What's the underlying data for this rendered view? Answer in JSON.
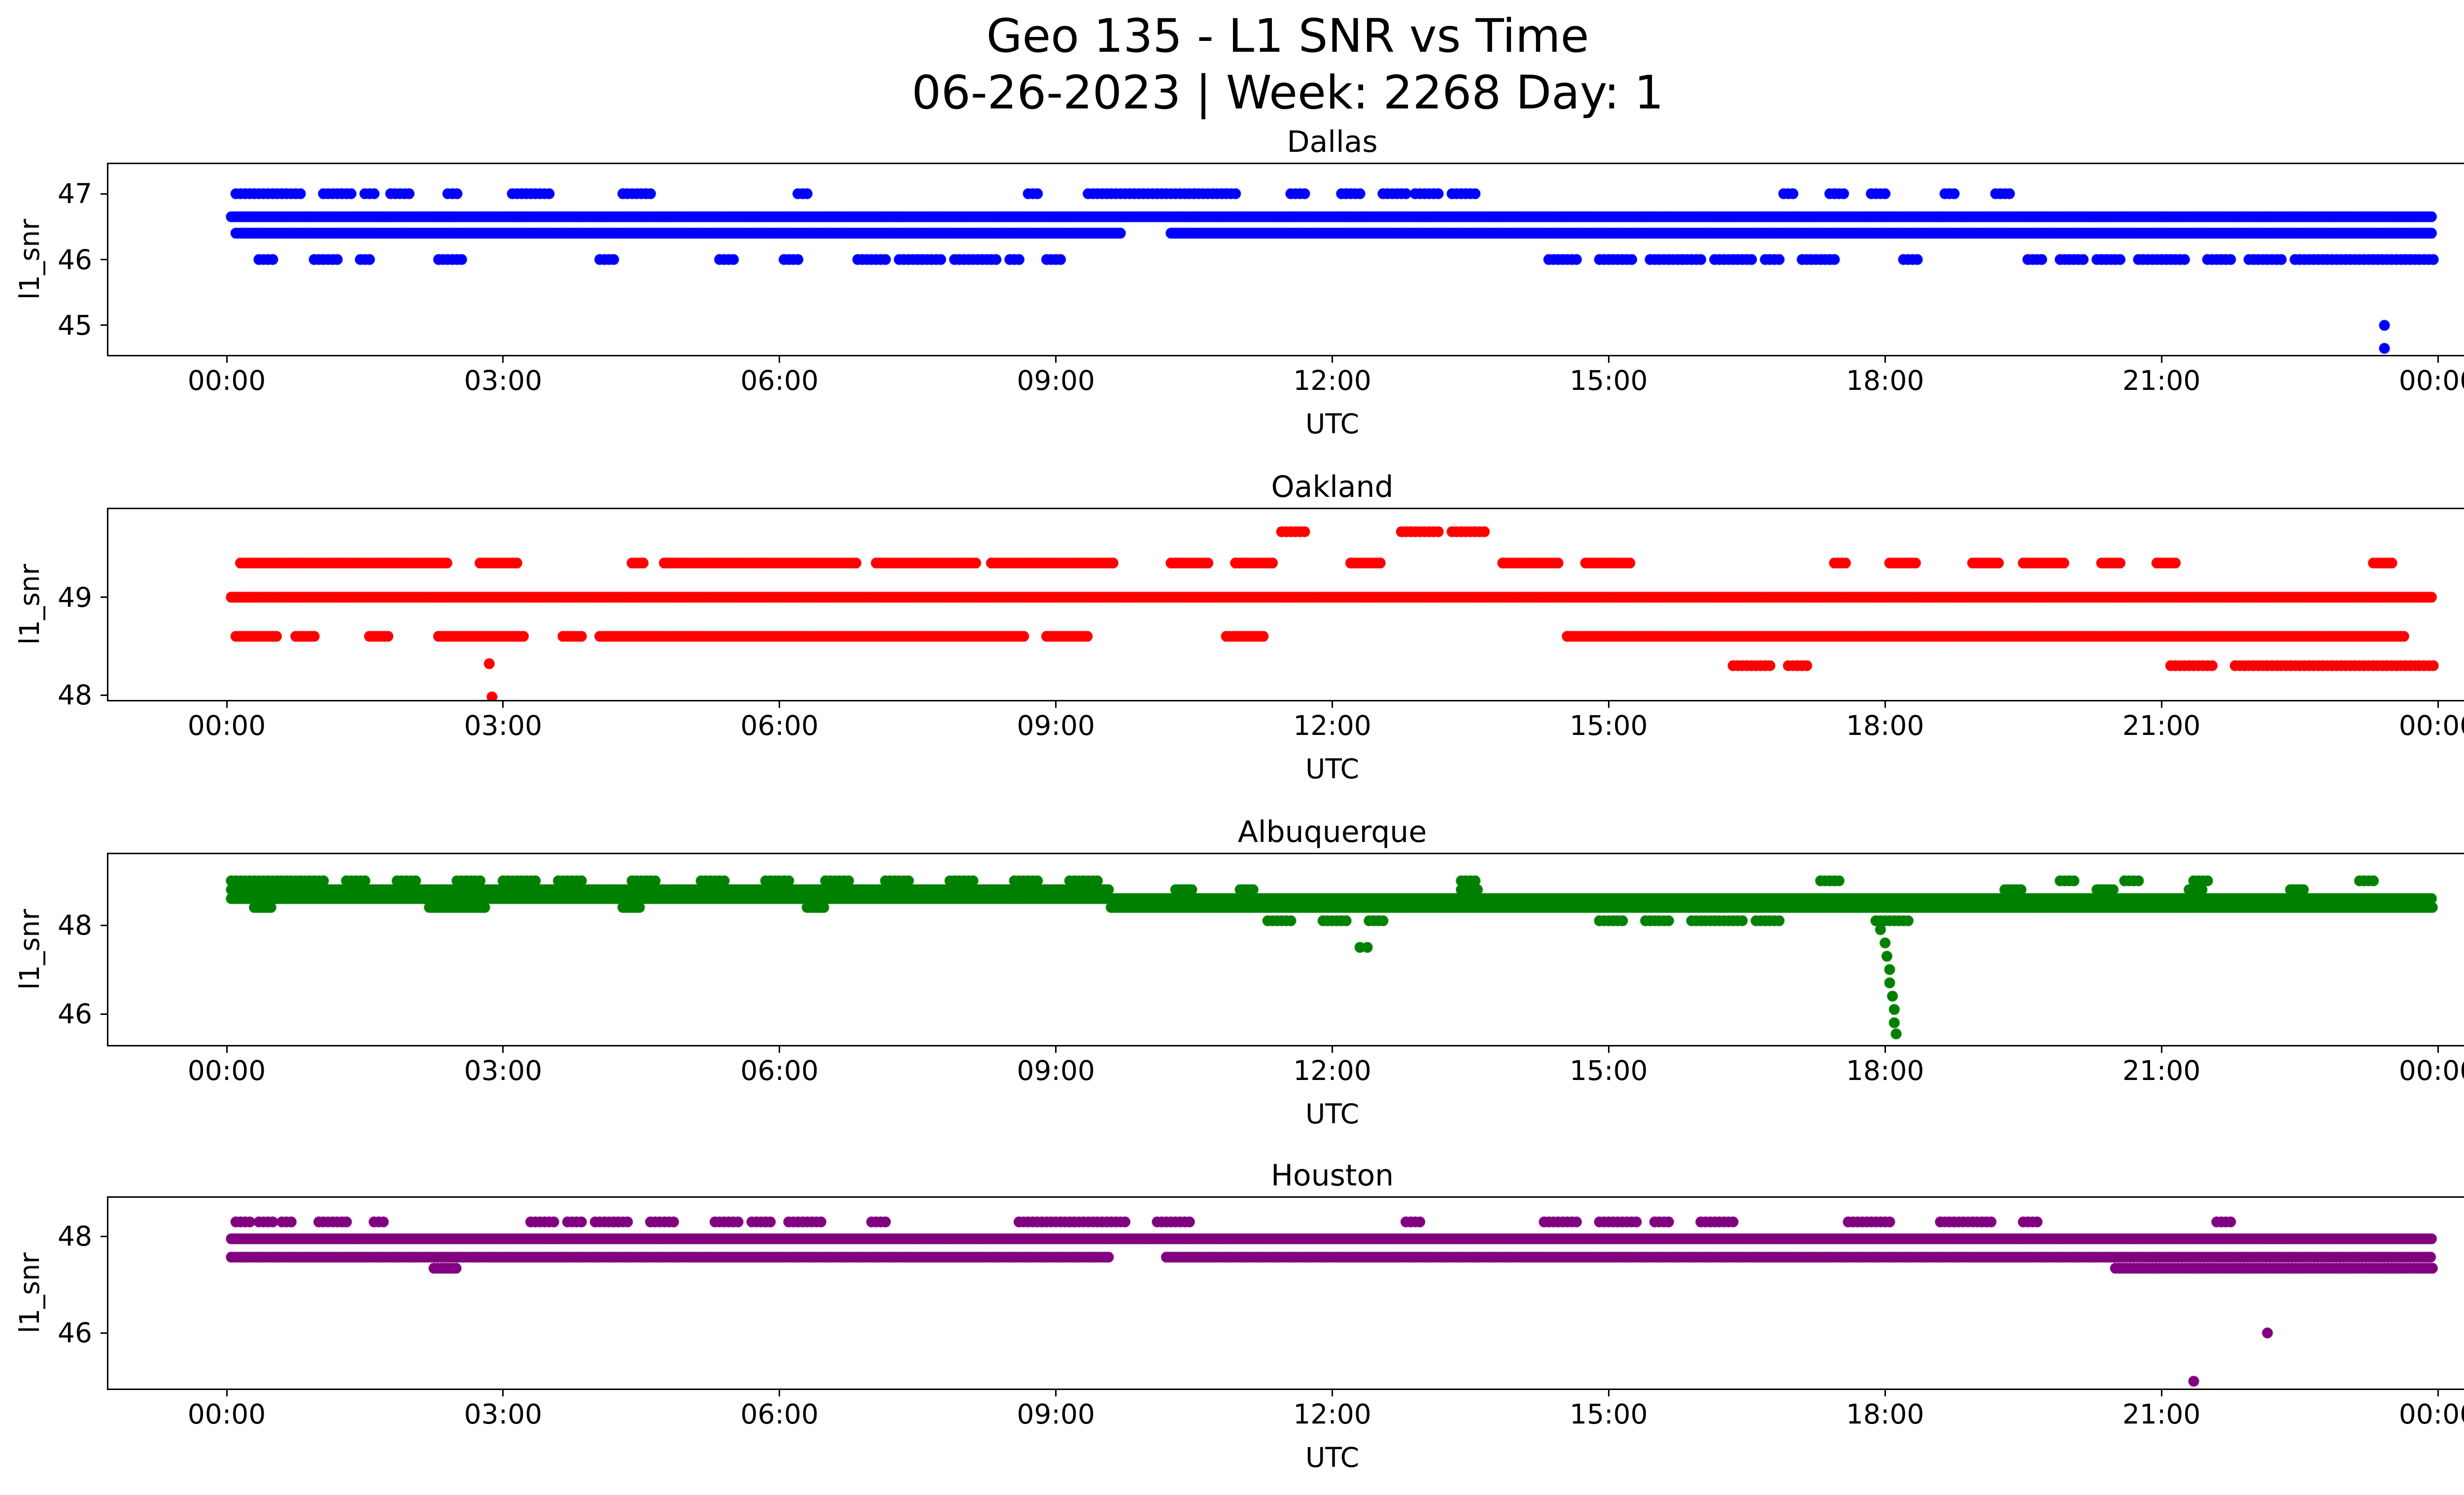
{
  "figure": {
    "title_line1": "Geo 135 - L1 SNR vs Time",
    "title_line2": "06-26-2023 | Week: 2268 Day: 1"
  },
  "axis": {
    "xlabel": "UTC",
    "x_tick_labels": [
      "00:00",
      "03:00",
      "06:00",
      "09:00",
      "12:00",
      "15:00",
      "18:00",
      "21:00",
      "00:00"
    ],
    "x_tick_hours": [
      0,
      3,
      6,
      9,
      12,
      15,
      18,
      21,
      24
    ],
    "x_range_hours": [
      0,
      24
    ],
    "grid": false,
    "legend": "none"
  },
  "chart_data": [
    {
      "type": "scatter",
      "title": "Dallas",
      "color": "#0000ff",
      "ylabel": "l1_snr",
      "xlabel": "UTC",
      "ylim": [
        44.55,
        47.45
      ],
      "yticks": [
        45,
        46,
        47
      ],
      "bands": [
        {
          "y": 46.65,
          "step": 0.03,
          "segments": [
            [
              0.05,
              23.95
            ]
          ]
        },
        {
          "y": 46.4,
          "step": 0.03,
          "segments": [
            [
              0.1,
              9.7
            ],
            [
              10.25,
              23.95
            ]
          ]
        },
        {
          "y": 47.0,
          "step": 0.05,
          "segments": [
            [
              0.1,
              0.8
            ],
            [
              1.05,
              1.35
            ],
            [
              1.5,
              1.62
            ],
            [
              1.78,
              2.02
            ],
            [
              2.4,
              2.52
            ],
            [
              3.1,
              3.5
            ],
            [
              4.3,
              4.6
            ],
            [
              6.2,
              6.32
            ],
            [
              8.7,
              8.82
            ],
            [
              9.35,
              10.95
            ],
            [
              11.55,
              11.72
            ],
            [
              12.1,
              12.3
            ],
            [
              12.55,
              12.8
            ],
            [
              12.9,
              13.15
            ],
            [
              13.3,
              13.55
            ],
            [
              16.9,
              17.0
            ],
            [
              17.4,
              17.55
            ],
            [
              17.85,
              18.0
            ],
            [
              18.65,
              18.78
            ],
            [
              19.2,
              19.35
            ]
          ]
        },
        {
          "y": 46.0,
          "step": 0.05,
          "segments": [
            [
              0.35,
              0.5
            ],
            [
              0.95,
              1.2
            ],
            [
              1.45,
              1.55
            ],
            [
              2.3,
              2.55
            ],
            [
              4.05,
              4.2
            ],
            [
              5.35,
              5.5
            ],
            [
              6.05,
              6.2
            ],
            [
              6.85,
              7.15
            ],
            [
              7.3,
              7.75
            ],
            [
              7.9,
              8.35
            ],
            [
              8.5,
              8.6
            ],
            [
              8.9,
              9.05
            ],
            [
              14.35,
              14.65
            ],
            [
              14.9,
              15.25
            ],
            [
              15.45,
              16.0
            ],
            [
              16.15,
              16.55
            ],
            [
              16.7,
              16.85
            ],
            [
              17.1,
              17.45
            ],
            [
              18.2,
              18.35
            ],
            [
              19.55,
              19.7
            ],
            [
              19.9,
              20.15
            ],
            [
              20.3,
              20.55
            ],
            [
              20.75,
              21.25
            ],
            [
              21.5,
              21.75
            ],
            [
              21.95,
              22.3
            ],
            [
              22.45,
              23.95
            ]
          ]
        }
      ],
      "outliers": [
        [
          23.42,
          45.0
        ],
        [
          23.42,
          44.65
        ]
      ]
    },
    {
      "type": "scatter",
      "title": "Oakland",
      "color": "#ff0000",
      "ylabel": "l1_snr",
      "xlabel": "UTC",
      "ylim": [
        47.95,
        49.9
      ],
      "yticks": [
        48,
        49
      ],
      "bands": [
        {
          "y": 49.0,
          "step": 0.03,
          "segments": [
            [
              0.05,
              23.95
            ]
          ]
        },
        {
          "y": 49.35,
          "step": 0.04,
          "segments": [
            [
              0.15,
              2.4
            ],
            [
              2.75,
              3.15
            ],
            [
              4.4,
              4.55
            ],
            [
              4.75,
              6.85
            ],
            [
              7.05,
              8.15
            ],
            [
              8.3,
              9.65
            ],
            [
              10.25,
              10.65
            ],
            [
              10.95,
              11.35
            ],
            [
              12.2,
              12.55
            ],
            [
              13.85,
              14.45
            ],
            [
              14.75,
              15.25
            ],
            [
              17.45,
              17.6
            ],
            [
              18.05,
              18.35
            ],
            [
              18.95,
              19.25
            ],
            [
              19.5,
              19.95
            ],
            [
              20.35,
              20.55
            ],
            [
              20.95,
              21.15
            ],
            [
              23.3,
              23.5
            ]
          ]
        },
        {
          "y": 49.67,
          "step": 0.05,
          "segments": [
            [
              11.45,
              11.7
            ],
            [
              12.75,
              13.15
            ],
            [
              13.3,
              13.65
            ]
          ]
        },
        {
          "y": 48.6,
          "step": 0.04,
          "segments": [
            [
              0.1,
              0.55
            ],
            [
              0.75,
              0.95
            ],
            [
              1.55,
              1.75
            ],
            [
              2.3,
              3.25
            ],
            [
              3.65,
              3.85
            ],
            [
              4.05,
              8.65
            ],
            [
              8.9,
              9.35
            ],
            [
              10.85,
              11.25
            ],
            [
              14.55,
              23.65
            ]
          ]
        },
        {
          "y": 48.3,
          "step": 0.05,
          "segments": [
            [
              16.35,
              16.75
            ],
            [
              16.95,
              17.15
            ],
            [
              21.1,
              21.55
            ],
            [
              21.8,
              23.95
            ]
          ]
        }
      ],
      "outliers": [
        [
          2.85,
          48.32
        ],
        [
          2.88,
          47.98
        ]
      ]
    },
    {
      "type": "scatter",
      "title": "Albuquerque",
      "color": "#008000",
      "ylabel": "l1_snr",
      "xlabel": "UTC",
      "ylim": [
        45.3,
        49.6
      ],
      "yticks": [
        46,
        48
      ],
      "bands": [
        {
          "y": 48.6,
          "step": 0.03,
          "segments": [
            [
              0.05,
              23.95
            ]
          ]
        },
        {
          "y": 48.8,
          "step": 0.035,
          "segments": [
            [
              0.05,
              9.6
            ],
            [
              10.3,
              10.5
            ],
            [
              11.0,
              11.15
            ],
            [
              13.4,
              13.6
            ],
            [
              19.3,
              19.5
            ],
            [
              20.3,
              20.5
            ],
            [
              21.3,
              21.45
            ],
            [
              22.4,
              22.55
            ]
          ]
        },
        {
          "y": 48.4,
          "step": 0.03,
          "segments": [
            [
              0.3,
              0.5
            ],
            [
              2.2,
              2.8
            ],
            [
              4.3,
              4.5
            ],
            [
              6.3,
              6.5
            ],
            [
              9.6,
              23.95
            ]
          ]
        },
        {
          "y": 49.0,
          "step": 0.05,
          "segments": [
            [
              0.05,
              1.05
            ],
            [
              1.3,
              1.5
            ],
            [
              1.85,
              2.05
            ],
            [
              2.5,
              2.75
            ],
            [
              3.0,
              3.35
            ],
            [
              3.6,
              3.85
            ],
            [
              4.4,
              4.65
            ],
            [
              5.15,
              5.4
            ],
            [
              5.85,
              6.1
            ],
            [
              6.5,
              6.75
            ],
            [
              7.15,
              7.4
            ],
            [
              7.85,
              8.1
            ],
            [
              8.55,
              8.8
            ],
            [
              9.15,
              9.45
            ],
            [
              13.4,
              13.55
            ],
            [
              17.3,
              17.5
            ],
            [
              19.9,
              20.05
            ],
            [
              20.6,
              20.75
            ],
            [
              21.35,
              21.5
            ],
            [
              23.15,
              23.3
            ]
          ]
        },
        {
          "y": 48.1,
          "step": 0.05,
          "segments": [
            [
              11.3,
              11.55
            ],
            [
              11.9,
              12.15
            ],
            [
              12.4,
              12.55
            ],
            [
              14.9,
              15.15
            ],
            [
              15.4,
              15.65
            ],
            [
              15.9,
              16.45
            ],
            [
              16.6,
              16.85
            ],
            [
              17.9,
              18.25
            ]
          ]
        },
        {
          "y": 47.5,
          "step": 0.08,
          "segments": [
            [
              12.3,
              12.42
            ]
          ]
        }
      ],
      "outliers": [
        [
          17.95,
          47.9
        ],
        [
          18.0,
          47.6
        ],
        [
          18.02,
          47.3
        ],
        [
          18.05,
          47.0
        ],
        [
          18.05,
          46.7
        ],
        [
          18.08,
          46.4
        ],
        [
          18.1,
          46.1
        ],
        [
          18.1,
          45.8
        ],
        [
          18.12,
          45.55
        ]
      ]
    },
    {
      "type": "scatter",
      "title": "Houston",
      "color": "#800080",
      "ylabel": "l1_snr",
      "xlabel": "UTC",
      "ylim": [
        44.85,
        48.8
      ],
      "yticks": [
        46,
        48
      ],
      "bands": [
        {
          "y": 47.95,
          "step": 0.03,
          "segments": [
            [
              0.05,
              23.95
            ]
          ]
        },
        {
          "y": 47.57,
          "step": 0.035,
          "segments": [
            [
              0.05,
              9.6
            ],
            [
              10.2,
              23.95
            ]
          ]
        },
        {
          "y": 48.3,
          "step": 0.05,
          "segments": [
            [
              0.1,
              0.25
            ],
            [
              0.35,
              0.5
            ],
            [
              0.6,
              0.7
            ],
            [
              1.0,
              1.3
            ],
            [
              1.6,
              1.72
            ],
            [
              3.3,
              3.55
            ],
            [
              3.7,
              3.85
            ],
            [
              4.0,
              4.35
            ],
            [
              4.6,
              4.85
            ],
            [
              5.3,
              5.55
            ],
            [
              5.7,
              5.9
            ],
            [
              6.1,
              6.45
            ],
            [
              7.0,
              7.15
            ],
            [
              8.6,
              9.75
            ],
            [
              10.1,
              10.45
            ],
            [
              12.8,
              12.95
            ],
            [
              14.3,
              14.65
            ],
            [
              14.9,
              15.3
            ],
            [
              15.5,
              15.65
            ],
            [
              16.0,
              16.35
            ],
            [
              17.6,
              18.05
            ],
            [
              18.6,
              19.15
            ],
            [
              19.5,
              19.65
            ],
            [
              21.6,
              21.75
            ]
          ]
        },
        {
          "y": 47.34,
          "step": 0.04,
          "segments": [
            [
              2.25,
              2.5
            ],
            [
              20.5,
              23.95
            ]
          ]
        }
      ],
      "outliers": [
        [
          21.35,
          45.0
        ],
        [
          22.15,
          46.0
        ]
      ]
    }
  ]
}
